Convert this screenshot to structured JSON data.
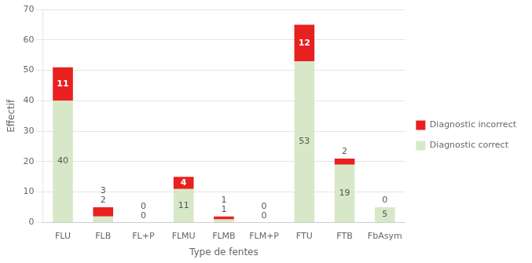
{
  "chart_data": {
    "type": "bar",
    "stacked": true,
    "categories": [
      "FLU",
      "FLB",
      "FL+P",
      "FLMU",
      "FLMB",
      "FLM+P",
      "FTU",
      "FTB",
      "FbAsym"
    ],
    "series": [
      {
        "name": "Diagnostic correct",
        "color": "#d6e8c8",
        "values": [
          40,
          2,
          0,
          11,
          1,
          0,
          53,
          19,
          5
        ]
      },
      {
        "name": "Diagnostic incorrect",
        "color": "#e82020",
        "values": [
          11,
          3,
          0,
          4,
          1,
          0,
          12,
          2,
          0
        ]
      }
    ],
    "xlabel": "Type de fentes",
    "ylabel": "Effectif",
    "ylim": [
      0,
      70
    ],
    "yticks": [
      0,
      10,
      20,
      30,
      40,
      50,
      60,
      70
    ],
    "grid": true,
    "legend": "right",
    "data_labels": true
  }
}
